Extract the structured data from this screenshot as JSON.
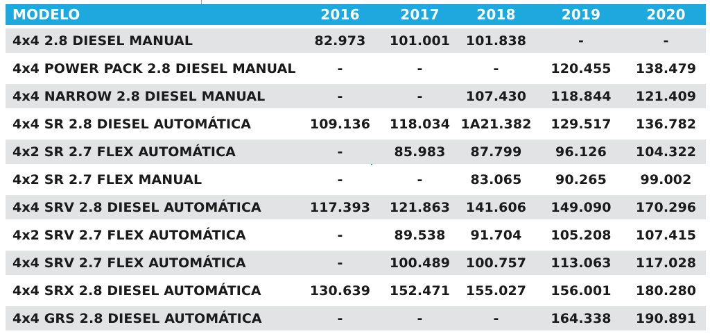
{
  "table": {
    "columns": [
      "MODELO",
      "2016",
      "2017",
      "2018",
      "2019",
      "2020"
    ],
    "rows": [
      {
        "model": "4x4 2.8 DIESEL MANUAL",
        "y2016": "82.973",
        "y2017": "101.001",
        "y2018": "101.838",
        "y2019": "-",
        "y2020": "-"
      },
      {
        "model": "4x4 POWER PACK 2.8 DIESEL MANUAL",
        "y2016": "-",
        "y2017": "-",
        "y2018": "-",
        "y2019": "120.455",
        "y2020": "138.479"
      },
      {
        "model": "4x4 NARROW 2.8 DIESEL MANUAL",
        "y2016": "-",
        "y2017": "-",
        "y2018": "107.430",
        "y2019": "118.844",
        "y2020": "121.409"
      },
      {
        "model": "4x4 SR 2.8 DIESEL AUTOMÁTICA",
        "y2016": "109.136",
        "y2017": "118.034",
        "y2018": "1A21.382",
        "y2019": "129.517",
        "y2020": "136.782"
      },
      {
        "model": "4x2 SR 2.7 FLEX AUTOMÁTICA",
        "y2016": "-",
        "y2017": "85.983",
        "y2018": "87.799",
        "y2019": "96.126",
        "y2020": "104.322"
      },
      {
        "model": "4x2 SR 2.7 FLEX MANUAL",
        "y2016": "-",
        "y2017": "-",
        "y2018": "83.065",
        "y2019": "90.265",
        "y2020": "99.002"
      },
      {
        "model": "4x4 SRV 2.8 DIESEL AUTOMÁTICA",
        "y2016": "117.393",
        "y2017": "121.863",
        "y2018": "141.606",
        "y2019": "149.090",
        "y2020": "170.296"
      },
      {
        "model": "4x2 SRV 2.7 FLEX AUTOMÁTICA",
        "y2016": "-",
        "y2017": "89.538",
        "y2018": "91.704",
        "y2019": "105.208",
        "y2020": "107.415"
      },
      {
        "model": "4x4 SRV 2.7 FLEX AUTOMÁTICA",
        "y2016": "-",
        "y2017": "100.489",
        "y2018": "100.757",
        "y2019": "113.063",
        "y2020": "117.028"
      },
      {
        "model": "4x4 SRX 2.8 DIESEL AUTOMÁTICA",
        "y2016": "130.639",
        "y2017": "152.471",
        "y2018": "155.027",
        "y2019": "156.001",
        "y2020": "180.280"
      },
      {
        "model": "4x4 GRS 2.8 DIESEL AUTOMÁTICA",
        "y2016": "-",
        "y2017": "-",
        "y2018": "-",
        "y2019": "164.338",
        "y2020": "190.891"
      }
    ]
  },
  "colors": {
    "header_bg": "#1ea9de",
    "header_text": "#ffffff",
    "row_shade": "#e2e3e5",
    "text": "#1a1a1a"
  }
}
